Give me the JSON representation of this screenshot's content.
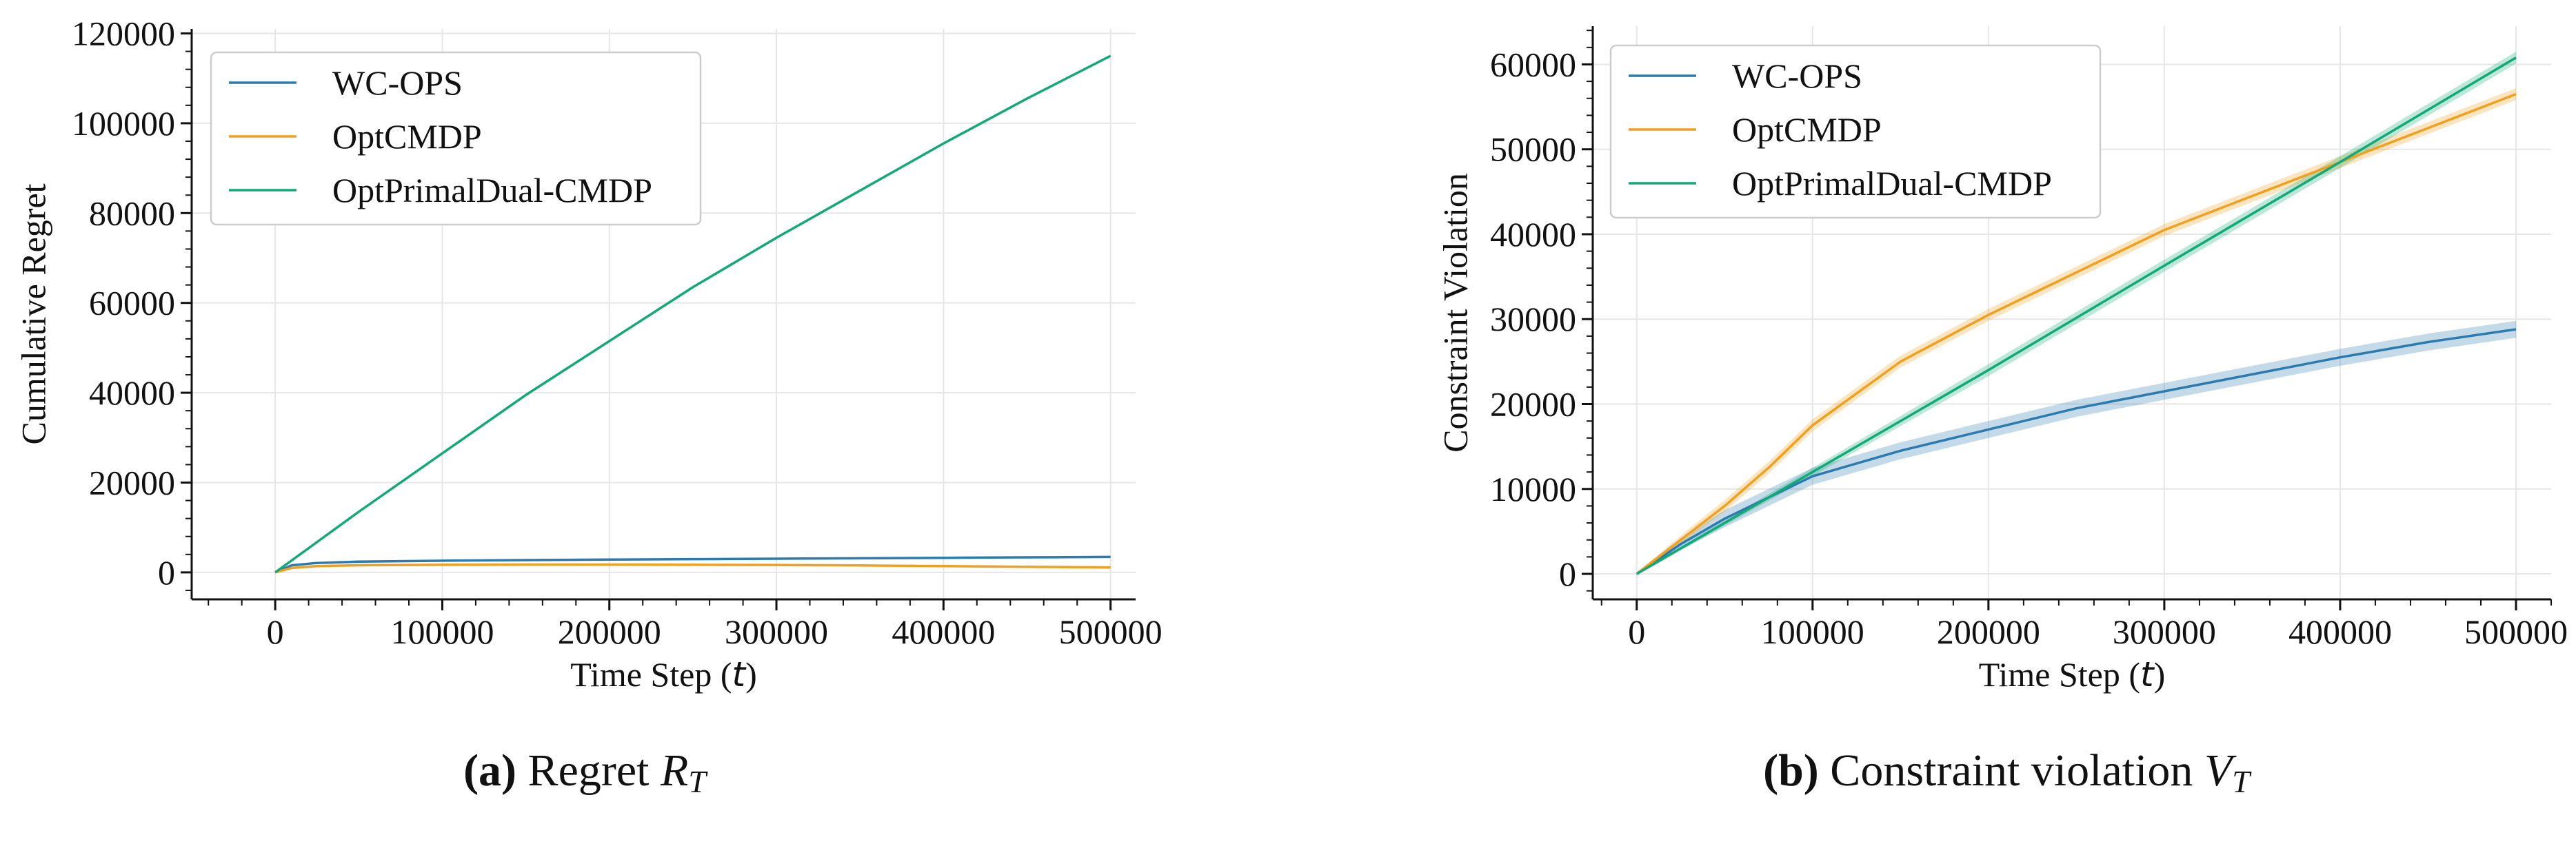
{
  "colors": {
    "wc_ops": "#2b7bb0",
    "optcmdp": "#f0a020",
    "optprimaldual": "#13a877"
  },
  "chart_data": [
    {
      "type": "line",
      "panel": "a",
      "caption_tag": "(a)",
      "caption_text": "Regret",
      "caption_math": "R",
      "caption_sub": "T",
      "xlabel": "Time Step (",
      "xlabel_var": "t",
      "xlabel_end": ")",
      "ylabel": "Cumulative Regret",
      "xlim": [
        -50000,
        515000
      ],
      "ylim": [
        -6000,
        121000
      ],
      "xticks": [
        0,
        100000,
        200000,
        300000,
        400000,
        500000
      ],
      "xtick_labels": [
        "0",
        "100000",
        "200000",
        "300000",
        "400000",
        "500000"
      ],
      "yticks": [
        0,
        20000,
        40000,
        60000,
        80000,
        100000,
        120000
      ],
      "ytick_labels": [
        "0",
        "20000",
        "40000",
        "60000",
        "80000",
        "100000",
        "120000"
      ],
      "grid": true,
      "legend_position": "upper-left",
      "series": [
        {
          "name": "WC-OPS",
          "color": "#2b7bb0",
          "x": [
            0,
            10000,
            25000,
            50000,
            100000,
            150000,
            200000,
            250000,
            300000,
            350000,
            400000,
            450000,
            500000
          ],
          "y": [
            0,
            1600,
            2100,
            2400,
            2600,
            2750,
            2850,
            2950,
            3050,
            3150,
            3250,
            3350,
            3450
          ]
        },
        {
          "name": "OptCMDP",
          "color": "#f0a020",
          "x": [
            0,
            10000,
            25000,
            50000,
            100000,
            150000,
            200000,
            250000,
            300000,
            350000,
            400000,
            450000,
            500000
          ],
          "y": [
            0,
            1000,
            1400,
            1600,
            1700,
            1750,
            1750,
            1700,
            1650,
            1550,
            1400,
            1250,
            1100
          ]
        },
        {
          "name": "OptPrimalDual-CMDP",
          "color": "#13a877",
          "x": [
            0,
            50000,
            100000,
            150000,
            200000,
            250000,
            300000,
            350000,
            400000,
            450000,
            500000
          ],
          "y": [
            0,
            13500,
            26500,
            39500,
            51500,
            63500,
            74500,
            85000,
            95500,
            105500,
            115000
          ]
        }
      ]
    },
    {
      "type": "line",
      "panel": "b",
      "caption_tag": "(b)",
      "caption_text": "Constraint violation",
      "caption_math": "V",
      "caption_sub": "T",
      "xlabel": "Time Step (",
      "xlabel_var": "t",
      "xlabel_end": ")",
      "ylabel": "Constraint Violation",
      "xlim": [
        -25000,
        520000
      ],
      "ylim": [
        -3000,
        64500
      ],
      "xticks": [
        0,
        100000,
        200000,
        300000,
        400000,
        500000
      ],
      "xtick_labels": [
        "0",
        "100000",
        "200000",
        "300000",
        "400000",
        "500000"
      ],
      "yticks": [
        0,
        10000,
        20000,
        30000,
        40000,
        50000,
        60000
      ],
      "ytick_labels": [
        "0",
        "10000",
        "20000",
        "30000",
        "40000",
        "50000",
        "60000"
      ],
      "grid": true,
      "legend_position": "upper-left",
      "series": [
        {
          "name": "WC-OPS",
          "color": "#2b7bb0",
          "x": [
            0,
            25000,
            50000,
            75000,
            100000,
            150000,
            200000,
            250000,
            300000,
            350000,
            400000,
            450000,
            500000
          ],
          "y": [
            0,
            3500,
            6500,
            9000,
            11500,
            14500,
            17000,
            19500,
            21500,
            23500,
            25500,
            27300,
            28800
          ],
          "band": 1000
        },
        {
          "name": "OptCMDP",
          "color": "#f0a020",
          "x": [
            0,
            25000,
            50000,
            75000,
            100000,
            150000,
            200000,
            250000,
            300000,
            350000,
            400000,
            450000,
            500000
          ],
          "y": [
            0,
            4000,
            8000,
            12500,
            17500,
            25000,
            30500,
            35500,
            40500,
            44500,
            48500,
            52500,
            56500
          ],
          "band": 700
        },
        {
          "name": "OptPrimalDual-CMDP",
          "color": "#13a877",
          "x": [
            0,
            100000,
            200000,
            300000,
            400000,
            500000
          ],
          "y": [
            0,
            12000,
            24000,
            36300,
            48500,
            60800
          ],
          "band": 700
        }
      ]
    }
  ]
}
